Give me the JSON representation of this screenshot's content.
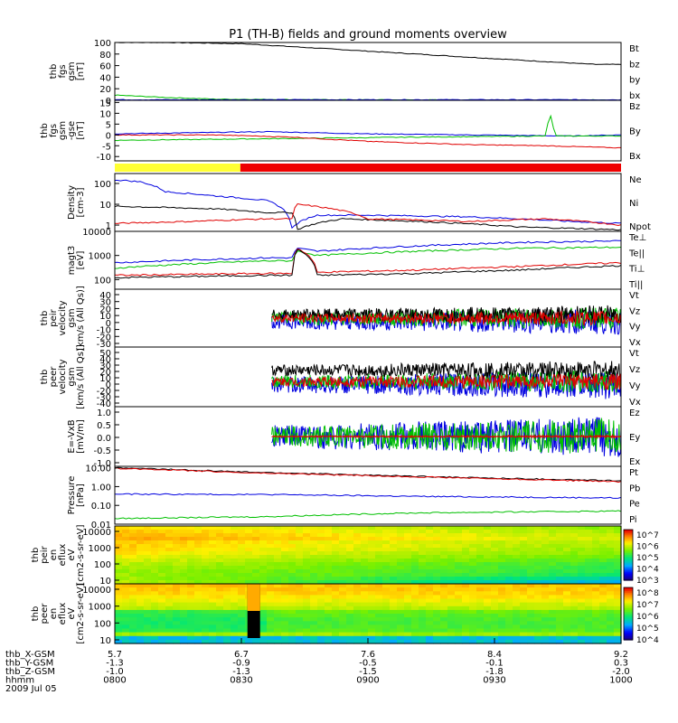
{
  "title": "P1 (TH-B) fields and ground moments overview",
  "colors": {
    "black": "#000000",
    "red": "#e00000",
    "green": "#00c000",
    "blue": "#0000e0",
    "yellow": "#ffff33",
    "barred": "#ee0000"
  },
  "time_axis": {
    "rows": [
      {
        "label": "thb_X-GSM",
        "values": [
          "5.7",
          "6.7",
          "7.6",
          "8.4",
          "9.2"
        ]
      },
      {
        "label": "thb_Y-GSM",
        "values": [
          "-1.3",
          "-0.9",
          "-0.5",
          "-0.1",
          "0.3"
        ]
      },
      {
        "label": "thb_Z-GSM",
        "values": [
          "-1.0",
          "-1.3",
          "-1.5",
          "-1.8",
          "-2.0"
        ]
      },
      {
        "label": "hhmm",
        "values": [
          "0800",
          "0830",
          "0900",
          "0930",
          "1000"
        ]
      }
    ],
    "date": "2009 Jul 05"
  },
  "chart_data": [
    {
      "id": "fgs_gsm",
      "type": "line",
      "ylabel": [
        "thb",
        "fgs",
        "gsm",
        "[nT]"
      ],
      "ylim": [
        0,
        100
      ],
      "ticks": [
        "100",
        "80",
        "60",
        "40",
        "20",
        "0"
      ],
      "legend": [
        {
          "name": "Bt",
          "color": "#000000"
        },
        {
          "name": "bz",
          "color": "#e00000"
        },
        {
          "name": "by",
          "color": "#00c000"
        },
        {
          "name": "bx",
          "color": "#0000e0"
        }
      ],
      "series": [
        {
          "name": "Bt",
          "t": [
            0,
            0.1,
            0.25,
            0.5,
            0.75,
            0.95,
            1.0
          ],
          "y": [
            100,
            100,
            98,
            85,
            72,
            62,
            62
          ]
        },
        {
          "name": "by",
          "t": [
            0,
            0.1,
            0.2,
            0.4,
            0.7,
            1.0
          ],
          "y": [
            9,
            5,
            2,
            1,
            0.5,
            0.5
          ]
        },
        {
          "name": "bx",
          "t": [
            0,
            0.2,
            0.6,
            1.0
          ],
          "y": [
            1,
            1,
            1,
            1
          ]
        }
      ]
    },
    {
      "id": "fgs_gse",
      "type": "line",
      "ylabel": [
        "thb",
        "fgs",
        "gsm",
        "-gse",
        "[nT]"
      ],
      "ylim": [
        -12,
        16
      ],
      "ticks": [
        "15",
        "10",
        "5",
        "0",
        "-5",
        "-10"
      ],
      "legend": [
        {
          "name": "Bz",
          "color": "#e00000"
        },
        {
          "name": "By",
          "color": "#00c000"
        },
        {
          "name": "Bx",
          "color": "#0000e0"
        }
      ],
      "series": [
        {
          "name": "Bx",
          "t": [
            0,
            0.15,
            0.3,
            0.5,
            0.7,
            0.9,
            1.0
          ],
          "y": [
            0.5,
            1,
            1.5,
            0.5,
            0,
            -0.5,
            0
          ]
        },
        {
          "name": "By",
          "t": [
            0,
            0.2,
            0.4,
            0.6,
            0.85,
            0.86,
            0.87,
            1.0
          ],
          "y": [
            -2.5,
            -2,
            -1.5,
            -1,
            -0.5,
            10,
            -0.5,
            -0.5
          ]
        },
        {
          "name": "Bz",
          "t": [
            0,
            0.2,
            0.35,
            0.5,
            0.7,
            0.85,
            1.0
          ],
          "y": [
            0,
            0,
            -1,
            -3,
            -4.5,
            -5,
            -6
          ]
        }
      ]
    },
    {
      "id": "density",
      "type": "line",
      "log": true,
      "ylabel": [
        "Density",
        "[cm-3]"
      ],
      "ylim": [
        0.5,
        300
      ],
      "ticks": [
        "100",
        "10",
        "1"
      ],
      "legend": [
        {
          "name": "Ne",
          "color": "#e00000"
        },
        {
          "name": "Ni",
          "color": "#000000"
        },
        {
          "name": "Npot",
          "color": "#0000e0"
        }
      ],
      "series": [
        {
          "name": "Npot",
          "t": [
            0,
            0.05,
            0.1,
            0.2,
            0.3,
            0.35,
            0.4,
            0.5,
            0.7,
            0.9,
            1.0
          ],
          "y": [
            150,
            120,
            40,
            25,
            15,
            0.7,
            3,
            3,
            2.5,
            1.5,
            1.2
          ]
        },
        {
          "name": "Ni",
          "t": [
            0,
            0.1,
            0.2,
            0.3,
            0.35,
            0.36,
            0.45,
            0.6,
            0.8,
            1.0
          ],
          "y": [
            8,
            7,
            6,
            4,
            4,
            0.6,
            2,
            1.5,
            0.8,
            0.6
          ]
        },
        {
          "name": "Ne",
          "t": [
            0,
            0.15,
            0.3,
            0.35,
            0.36,
            0.5,
            0.7,
            0.85,
            1.0
          ],
          "y": [
            1.2,
            1.5,
            2,
            2,
            10,
            2,
            1.5,
            2,
            1
          ]
        }
      ]
    },
    {
      "id": "temp",
      "type": "line",
      "log": true,
      "ylabel": [
        "magt3",
        "[eV]"
      ],
      "ylim": [
        40,
        10000
      ],
      "ticks": [
        "10000",
        "1000",
        "100"
      ],
      "legend": [
        {
          "name": "Te⊥",
          "color": "#e00000"
        },
        {
          "name": "Te||",
          "color": "#000000"
        },
        {
          "name": "Ti⊥",
          "color": "#0000e0"
        },
        {
          "name": "Ti||",
          "color": "#00c000"
        }
      ],
      "series": [
        {
          "name": "Ti⊥",
          "t": [
            0,
            0.1,
            0.3,
            0.35,
            0.36,
            0.4,
            0.6,
            0.8,
            1.0
          ],
          "y": [
            500,
            600,
            800,
            800,
            2000,
            1500,
            2500,
            3500,
            4000
          ]
        },
        {
          "name": "Ti||",
          "t": [
            0,
            0.1,
            0.3,
            0.35,
            0.36,
            0.4,
            0.6,
            0.8,
            1.0
          ],
          "y": [
            300,
            400,
            600,
            600,
            1500,
            1000,
            1500,
            2000,
            2200
          ]
        },
        {
          "name": "Te⊥",
          "t": [
            0,
            0.1,
            0.3,
            0.35,
            0.36,
            0.4,
            0.6,
            0.8,
            1.0
          ],
          "y": [
            150,
            160,
            180,
            180,
            2000,
            200,
            250,
            350,
            500
          ]
        },
        {
          "name": "Te||",
          "t": [
            0,
            0.1,
            0.3,
            0.35,
            0.36,
            0.4,
            0.6,
            0.8,
            1.0
          ],
          "y": [
            120,
            130,
            150,
            150,
            1800,
            150,
            180,
            250,
            380
          ]
        }
      ]
    },
    {
      "id": "peir_vel",
      "type": "line",
      "noisy": true,
      "start": 0.31,
      "ylabel": [
        "thb",
        "peir",
        "velocity",
        "gsm",
        "[km/s (All Qs)]"
      ],
      "ylim": [
        -40,
        40
      ],
      "ticks": [
        "40",
        "30",
        "20",
        "10",
        "0",
        "-10",
        "-20",
        "-30"
      ],
      "legend": [
        {
          "name": "Vt",
          "color": "#000000"
        },
        {
          "name": "Vz",
          "color": "#e00000"
        },
        {
          "name": "Vy",
          "color": "#00c000"
        },
        {
          "name": "Vx",
          "color": "#0000e0"
        }
      ],
      "series": [
        {
          "name": "Vx",
          "mean": -5,
          "amp": 14
        },
        {
          "name": "Vy",
          "mean": 0,
          "amp": 12
        },
        {
          "name": "Vt",
          "mean": 5,
          "amp": 10
        },
        {
          "name": "Vz",
          "mean": 0,
          "amp": 8
        }
      ]
    },
    {
      "id": "peer_vel",
      "type": "line",
      "noisy": true,
      "start": 0.31,
      "ylabel": [
        "thb",
        "peer",
        "velocity",
        "gsm",
        "[km/s (All Qs)]"
      ],
      "ylim": [
        -40,
        55
      ],
      "ticks": [
        "50",
        "40",
        "30",
        "20",
        "10",
        "0",
        "-20",
        "-30",
        "-40"
      ],
      "legend": [
        {
          "name": "Vt",
          "color": "#000000"
        },
        {
          "name": "Vz",
          "color": "#e00000"
        },
        {
          "name": "Vy",
          "color": "#00c000"
        },
        {
          "name": "Vx",
          "color": "#0000e0"
        }
      ],
      "series": [
        {
          "name": "Vx",
          "mean": -5,
          "amp": 18
        },
        {
          "name": "Vy",
          "mean": 0,
          "amp": 14
        },
        {
          "name": "Vt",
          "mean": 18,
          "amp": 12
        },
        {
          "name": "Vz",
          "mean": 0,
          "amp": 10
        }
      ]
    },
    {
      "id": "efield",
      "type": "line",
      "noisy": true,
      "start": 0.31,
      "ylabel": [
        "E=-VxB",
        "[mV/m]"
      ],
      "ylim": [
        -1.5,
        1.5
      ],
      "ticks": [
        "1.0",
        "0.5",
        "0.0",
        "-0.5",
        "-1.0"
      ],
      "legend": [
        {
          "name": "Ez",
          "color": "#e00000"
        },
        {
          "name": "Ey",
          "color": "#00c000"
        },
        {
          "name": "Ex",
          "color": "#0000e0"
        }
      ],
      "series": [
        {
          "name": "Ex",
          "mean": 0,
          "amp": 0.8
        },
        {
          "name": "Ey",
          "mean": 0,
          "amp": 0.7
        },
        {
          "name": "Ez",
          "mean": 0,
          "amp": 0.05
        }
      ]
    },
    {
      "id": "pressure",
      "type": "line",
      "log": true,
      "ylabel": [
        "Pressure",
        "[nPa]"
      ],
      "ylim": [
        0.01,
        12
      ],
      "ticks": [
        "10.00",
        "1.00",
        "0.10",
        "0.01"
      ],
      "legend": [
        {
          "name": "Pt",
          "color": "#000000"
        },
        {
          "name": "Pb",
          "color": "#e00000"
        },
        {
          "name": "Pe",
          "color": "#00c000"
        },
        {
          "name": "Pi",
          "color": "#0000e0"
        }
      ],
      "series": [
        {
          "name": "Pt",
          "t": [
            0,
            0.25,
            0.5,
            0.75,
            1.0
          ],
          "y": [
            10,
            6,
            4,
            2.8,
            2
          ]
        },
        {
          "name": "Pb",
          "t": [
            0,
            0.25,
            0.5,
            0.75,
            1.0
          ],
          "y": [
            9.5,
            5.5,
            3.8,
            2.6,
            1.8
          ]
        },
        {
          "name": "Pi",
          "t": [
            0,
            0.3,
            0.6,
            1.0
          ],
          "y": [
            0.4,
            0.38,
            0.3,
            0.25
          ]
        },
        {
          "name": "Pe",
          "t": [
            0,
            0.3,
            0.6,
            1.0
          ],
          "y": [
            0.02,
            0.025,
            0.04,
            0.05
          ]
        }
      ]
    },
    {
      "id": "peir_spec",
      "type": "heatmap",
      "ylabel": [
        "thb",
        "peir",
        "en",
        "eflux",
        "eV",
        "[cm2-s-sr-eV]"
      ],
      "ticks": [
        "10000",
        "1000",
        "100",
        "10"
      ],
      "colorbar": [
        "10^7",
        "10^6",
        "10^5",
        "10^4",
        "10^3"
      ]
    },
    {
      "id": "peer_spec",
      "type": "heatmap",
      "ylabel": [
        "thb",
        "peer",
        "en",
        "eflux",
        "eV",
        "[cm2-s-sr-eV]"
      ],
      "ticks": [
        "10000",
        "1000",
        "100",
        "10"
      ],
      "colorbar": [
        "10^8",
        "10^7",
        "10^6",
        "10^5",
        "10^4"
      ]
    }
  ]
}
